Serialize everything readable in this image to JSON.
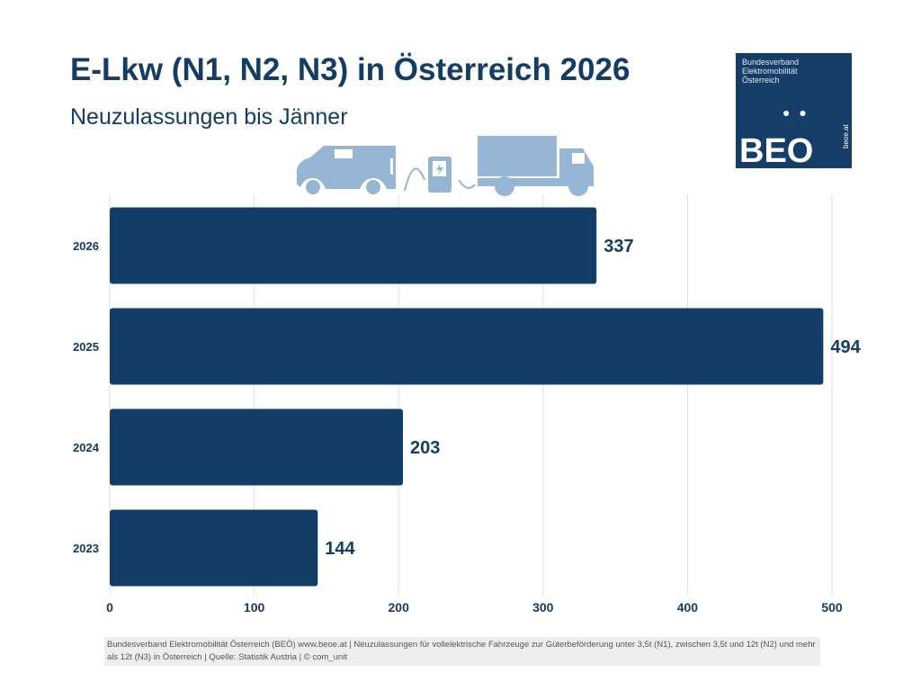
{
  "header": {
    "title": "E-Lkw (N1, N2, N3) in Österreich 2026",
    "subtitle": "Neuzulassungen bis Jänner"
  },
  "logo": {
    "org_lines": [
      "Bundesverband",
      "Elektromobilität",
      "Österreich"
    ],
    "wordmark": "BEO",
    "url": "beoe.at"
  },
  "illustration": {
    "icons": [
      "van-icon",
      "charging-station-icon",
      "truck-icon"
    ],
    "color": "#97b5d4"
  },
  "chart_data": {
    "type": "bar",
    "orientation": "horizontal",
    "title": "E-Lkw (N1, N2, N3) in Österreich 2026",
    "subtitle": "Neuzulassungen bis Jänner",
    "categories": [
      "2026",
      "2025",
      "2024",
      "2023"
    ],
    "values": [
      337,
      494,
      203,
      144
    ],
    "xlim": [
      0,
      500
    ],
    "xticks": [
      0,
      100,
      200,
      300,
      400,
      500
    ],
    "grid": true,
    "bar_color": "#133c66",
    "xlabel": "",
    "ylabel": ""
  },
  "footer": {
    "text": "Bundesverband Elektromobilität Österreich (BEÖ) www.beoe.at | Neuzulassungen für vollelektrische Fahrzeuge zur Güterbeförderung unter 3,5t (N1), zwischen 3,5t und 12t (N2) und mehr als 12t (N3) in Österreich | Quelle: Statistik Austria | © com_unit"
  }
}
